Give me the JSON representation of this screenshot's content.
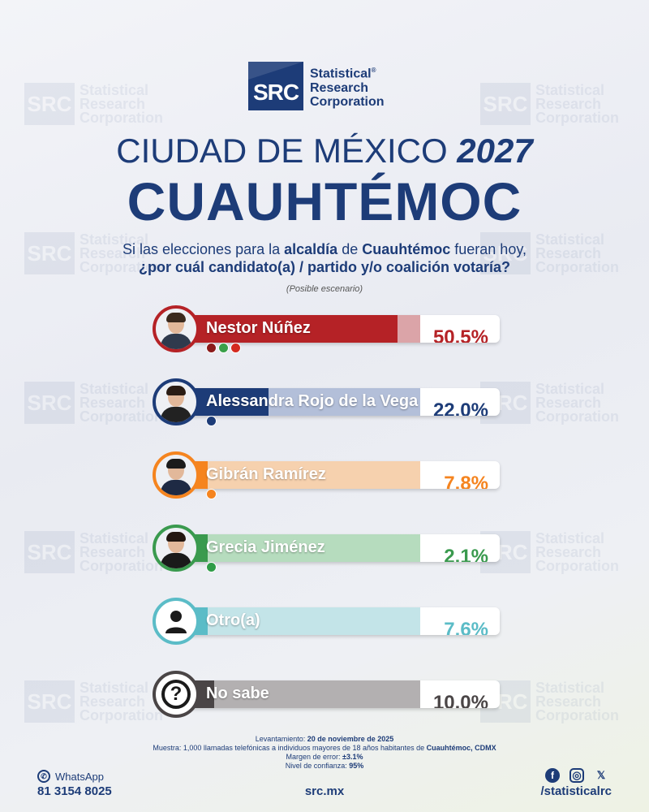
{
  "brand": {
    "logo_abbr": "SRC",
    "logo_line1": "Statistical",
    "logo_line2": "Research",
    "logo_line3": "Corporation",
    "registered": "®"
  },
  "header": {
    "title_regular": "CIUDAD DE MÉXICO",
    "title_year": "2027",
    "title_main": "CUAUHTÉMOC",
    "question_p1": "Si las elecciones para la",
    "question_b1": "alcaldía",
    "question_p2": "de",
    "question_b2": "Cuauhtémoc",
    "question_p3": "fueran hoy,",
    "question_line2": "¿por cuál candidato(a) / partido y/o coalición votaría?",
    "note": "(Posible escenario)"
  },
  "chart_data": {
    "type": "bar",
    "categories": [
      "Nestor Núñez",
      "Alessandra Rojo de la Vega",
      "Gibrán Ramírez",
      "Grecia Jiménez",
      "Otro(a)",
      "No sabe"
    ],
    "values": [
      50.5,
      22.0,
      7.8,
      2.1,
      7.6,
      10.0
    ],
    "value_labels": [
      "50.5%",
      "22.0%",
      "7.8%",
      "2.1%",
      "7.6%",
      "10.0%"
    ],
    "colors": [
      "#b52226",
      "#1d3c78",
      "#f5841f",
      "#3a9a4e",
      "#5bbcc7",
      "#4a4546"
    ],
    "pale_colors": [
      "#dba4a8",
      "#b3bfd9",
      "#f6d1ae",
      "#b6dcbe",
      "#c3e4e8",
      "#b3b0b1"
    ],
    "party_icons": [
      [
        "morena-icon",
        "pvem-icon",
        "pt-icon"
      ],
      [
        "pan-icon"
      ],
      [
        "mc-icon"
      ],
      [
        "pri-icon"
      ],
      [],
      []
    ],
    "avatar_icons": [
      "candidate-photo-icon",
      "candidate-photo-icon",
      "candidate-photo-icon",
      "candidate-photo-icon",
      "person-silhouette-icon",
      "question-mark-icon"
    ],
    "xlim": [
      0,
      100
    ]
  },
  "footer": {
    "survey_label": "Levantamiento:",
    "survey_date": "20 de noviembre de 2025",
    "sample_label": "Muestra:",
    "sample_text": "1,000 llamadas telefónicas a individuos mayores de 18 años habitantes de",
    "sample_place": "Cuauhtémoc, CDMX",
    "error_label": "Margen de error:",
    "error_value": "±3.1%",
    "confidence_label": "Nivel de confianza:",
    "confidence_value": "95%",
    "whatsapp_label": "WhatsApp",
    "phone": "81 3154 8025",
    "website": "src.mx",
    "social_handle": "/statisticalrc",
    "social_icons": [
      "facebook-icon",
      "instagram-icon",
      "x-icon"
    ]
  }
}
